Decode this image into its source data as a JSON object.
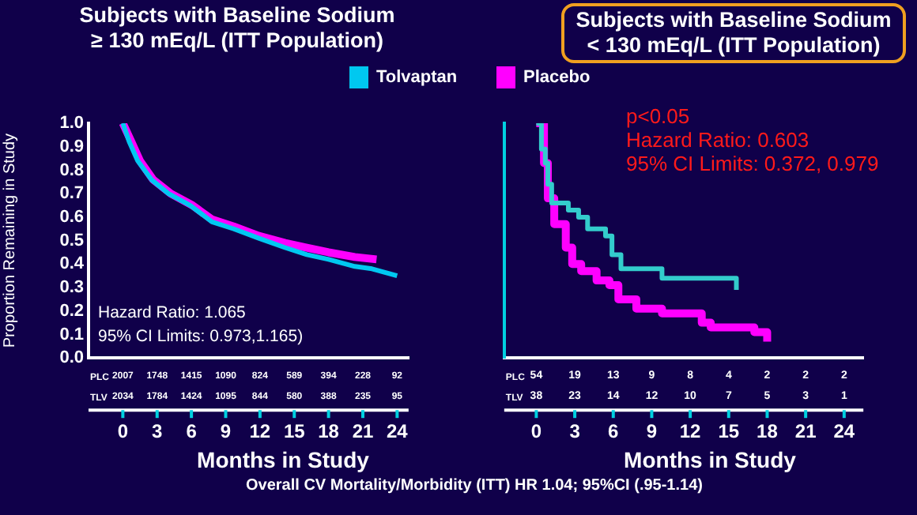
{
  "chart_data": [
    {
      "type": "line",
      "title": "Subjects with Baseline Sodium\n≥ 130 mEq/L (ITT Population)",
      "xlabel": "Months in Study",
      "ylabel": "Proportion Remaining in Study",
      "xlim": [
        -3,
        25
      ],
      "xticks": [
        0,
        3,
        6,
        9,
        12,
        15,
        18,
        21,
        24
      ],
      "ylim": [
        0,
        1
      ],
      "yticks": [
        {
          "value": 0,
          "label": "0.0"
        },
        {
          "value": 0.1,
          "label": "0.1"
        },
        {
          "value": 0.2,
          "label": "0.2"
        },
        {
          "value": 0.3,
          "label": "0.3"
        },
        {
          "value": 0.4,
          "label": "0.4"
        },
        {
          "value": 0.5,
          "label": "0.5"
        },
        {
          "value": 0.6,
          "label": "0.6"
        },
        {
          "value": 0.7,
          "label": "0.7"
        },
        {
          "value": 0.8,
          "label": "0.8"
        },
        {
          "value": 0.9,
          "label": "0.9"
        },
        {
          "value": 1,
          "label": "1.0"
        }
      ],
      "grid": false,
      "legend": "top right",
      "marker": "none",
      "line_style": "solid",
      "series": [
        {
          "name": "Tolvaptan",
          "color": "#00c8f0",
          "x": [
            0,
            0.57,
            1.3,
            2.5,
            4.0,
            5.9,
            7.8,
            9.7,
            11.9,
            14.2,
            16.1,
            18.0,
            20.3,
            21.8,
            24
          ],
          "values": [
            1.0,
            0.92,
            0.84,
            0.76,
            0.7,
            0.65,
            0.58,
            0.55,
            0.51,
            0.47,
            0.44,
            0.42,
            0.39,
            0.38,
            0.35
          ]
        },
        {
          "name": "Placebo",
          "color": "#ff00ff",
          "x": [
            0,
            0.76,
            1.5,
            2.65,
            4.2,
            6.1,
            7.8,
            9.7,
            11.9,
            14.2,
            16.1,
            18.0,
            20.3,
            22.2
          ],
          "values": [
            1.0,
            0.92,
            0.84,
            0.76,
            0.7,
            0.65,
            0.59,
            0.56,
            0.52,
            0.49,
            0.47,
            0.45,
            0.43,
            0.42
          ]
        }
      ],
      "annotations": [
        "Hazard Ratio: 1.065",
        "95% CI Limits: 0.973,1.165)",
        "PLC 2007 1748 1415 1090 824 589 394 228 92",
        "TLV 2034 1784 1424 1095 844 580 388 235 95",
        "Overall CV Mortality/Morbidity (ITT) HR 1.04; 95%CI (.95-1.14)"
      ]
    },
    {
      "type": "step",
      "title": "Subjects with Baseline Sodium\n< 130 mEq/L (ITT Population)",
      "xlabel": "Months in Study",
      "xlim": [
        -2.5,
        25.5
      ],
      "xticks": [
        0,
        3,
        6,
        9,
        12,
        15,
        18,
        21,
        24
      ],
      "ylim": [
        0,
        1
      ],
      "tick_labels": "x",
      "grid": false,
      "legend": false,
      "marker": "none",
      "line_style": "solid",
      "series": [
        {
          "color": "#33cccc",
          "x": [
            0,
            0.4,
            0.7,
            0.9,
            1.2,
            2.5,
            3.3,
            4.0,
            5.4,
            5.9,
            6.6,
            9.8,
            15.6
          ],
          "values": [
            1.0,
            0.89,
            0.83,
            0.74,
            0.66,
            0.63,
            0.6,
            0.55,
            0.52,
            0.44,
            0.38,
            0.34,
            0.29
          ]
        },
        {
          "color": "#ff00ff",
          "x": [
            0,
            0.6,
            0.9,
            1.4,
            2.3,
            2.8,
            3.5,
            4.7,
            5.7,
            6.4,
            7.8,
            9.8,
            12.9,
            13.6,
            17.0,
            18.0
          ],
          "values": [
            1.0,
            0.83,
            0.68,
            0.57,
            0.47,
            0.4,
            0.37,
            0.33,
            0.31,
            0.25,
            0.21,
            0.19,
            0.15,
            0.13,
            0.11,
            0.07
          ]
        }
      ],
      "annotations": [
        "p<0.05",
        "Hazard Ratio: 0.603",
        "95% CI Limits: 0.372, 0.979",
        "PLC 54 19 13 9 8 4 2 2 2",
        "TLV 38 23 14 12 10 7 5 3 1"
      ]
    }
  ]
}
